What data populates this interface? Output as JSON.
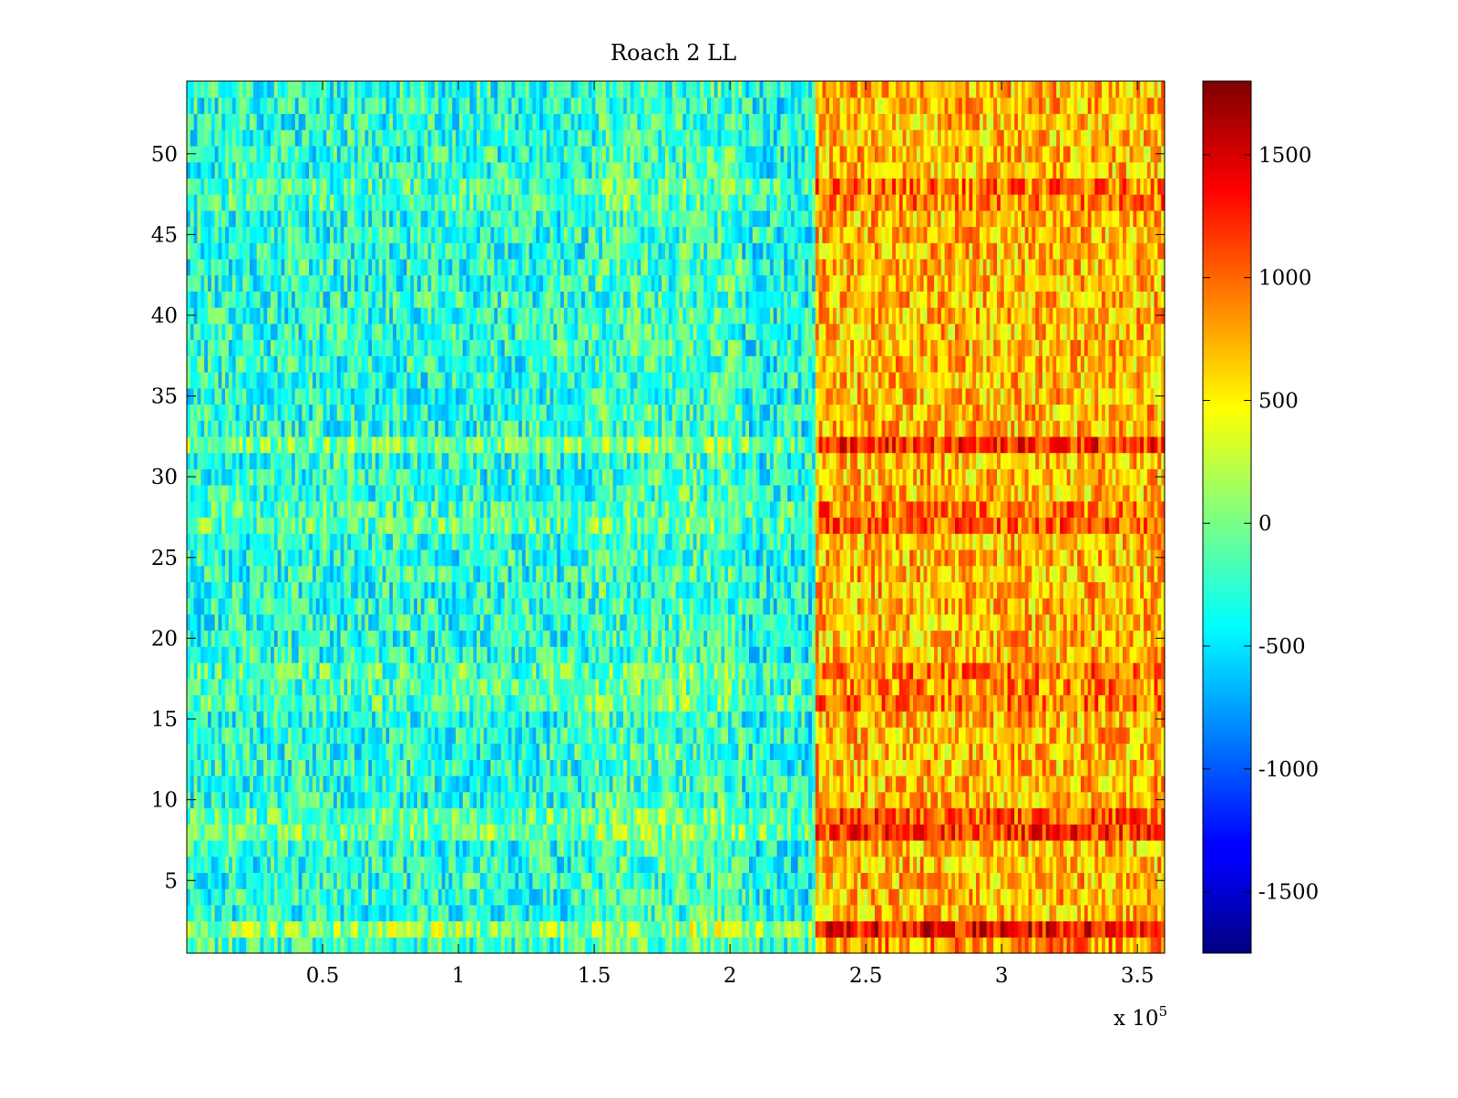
{
  "chart_data": {
    "type": "heatmap",
    "title": "Roach 2 LL",
    "xlabel": "",
    "ylabel": "",
    "x_multiplier_label": "x 10",
    "x_multiplier_exponent": "5",
    "xlim": [
      0,
      360000
    ],
    "ylim": [
      0.5,
      54.5
    ],
    "x_ticks": [
      {
        "value": 50000,
        "label": "0.5"
      },
      {
        "value": 100000,
        "label": "1"
      },
      {
        "value": 150000,
        "label": "1.5"
      },
      {
        "value": 200000,
        "label": "2"
      },
      {
        "value": 250000,
        "label": "2.5"
      },
      {
        "value": 300000,
        "label": "3"
      },
      {
        "value": 350000,
        "label": "3.5"
      }
    ],
    "y_ticks": [
      {
        "value": 5,
        "label": "5"
      },
      {
        "value": 10,
        "label": "10"
      },
      {
        "value": 15,
        "label": "15"
      },
      {
        "value": 20,
        "label": "20"
      },
      {
        "value": 25,
        "label": "25"
      },
      {
        "value": 30,
        "label": "30"
      },
      {
        "value": 35,
        "label": "35"
      },
      {
        "value": 40,
        "label": "40"
      },
      {
        "value": 45,
        "label": "45"
      },
      {
        "value": 50,
        "label": "50"
      }
    ],
    "rows": 54,
    "colorbar": {
      "colormap": "jet",
      "range": [
        -1750,
        1800
      ],
      "ticks": [
        {
          "value": -1500,
          "label": "-1500"
        },
        {
          "value": -1000,
          "label": "-1000"
        },
        {
          "value": -500,
          "label": "-500"
        },
        {
          "value": 0,
          "label": "0"
        },
        {
          "value": 500,
          "label": "500"
        },
        {
          "value": 1000,
          "label": "1000"
        },
        {
          "value": 1500,
          "label": "1500"
        }
      ]
    },
    "segments": [
      {
        "x_end": 150000,
        "base": -300
      },
      {
        "x_end": 205000,
        "base": -200
      },
      {
        "x_end": 232000,
        "base": -350
      },
      {
        "x_end": 360000,
        "base": 700
      }
    ],
    "row_offsets": {
      "1": 150,
      "2": 650,
      "8": 450,
      "9": 350,
      "16": 250,
      "17": 200,
      "18": 250,
      "27": 300,
      "28": 250,
      "32": 500,
      "47": 200,
      "48": 250
    },
    "grid": false,
    "legend": "none"
  }
}
